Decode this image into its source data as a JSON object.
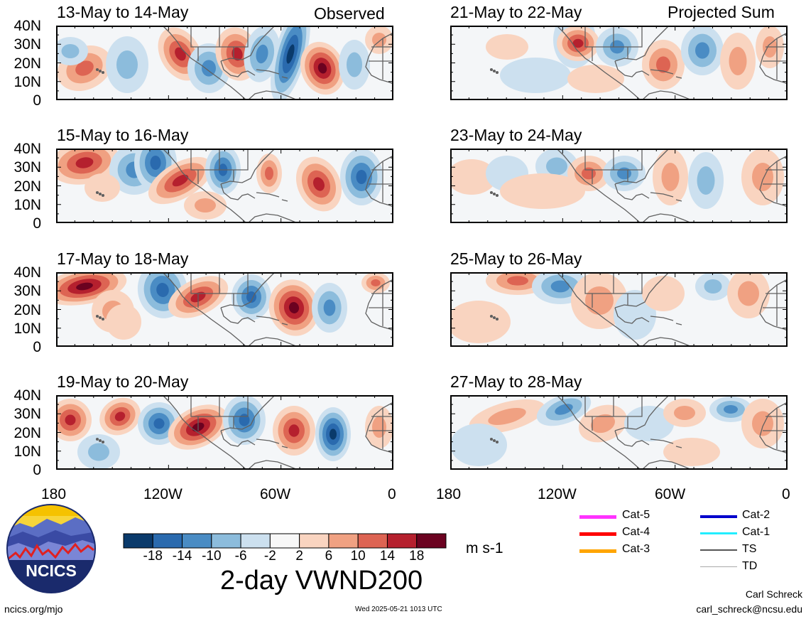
{
  "columns": {
    "left_label": "Observed",
    "right_label": "Projected Sum"
  },
  "panels_left": [
    {
      "title": "13-May to 14-May"
    },
    {
      "title": "15-May to 16-May"
    },
    {
      "title": "17-May to 18-May"
    },
    {
      "title": "19-May to 20-May"
    }
  ],
  "panels_right": [
    {
      "title": "21-May to 22-May"
    },
    {
      "title": "23-May to 24-May"
    },
    {
      "title": "25-May to 26-May"
    },
    {
      "title": "27-May to 28-May"
    }
  ],
  "y_ticks": [
    "40N",
    "30N",
    "20N",
    "10N",
    "0"
  ],
  "x_ticks": [
    "180",
    "120W",
    "60W",
    "0"
  ],
  "colorbar": {
    "ticks": [
      "-18",
      "-14",
      "-10",
      "-6",
      "-2",
      "2",
      "6",
      "10",
      "14",
      "18"
    ],
    "units": "m s-1",
    "colors": [
      "#0a3a6b",
      "#2a6aae",
      "#4a8cc4",
      "#8cbcdc",
      "#cce0ef",
      "#f7f7f7",
      "#f9d4c0",
      "#f0a182",
      "#dd6453",
      "#b5202e",
      "#6b0220"
    ]
  },
  "main_title": "2-day VWND200",
  "storm_legend": {
    "items": [
      {
        "label": "Cat-5",
        "color": "#ff33ff"
      },
      {
        "label": "Cat-4",
        "color": "#ff0000"
      },
      {
        "label": "Cat-3",
        "color": "#ffa500"
      },
      {
        "label": "Cat-2",
        "color": "#0000cc"
      },
      {
        "label": "Cat-1",
        "color": "#22eeff"
      },
      {
        "label": "TS",
        "color": "#555555"
      },
      {
        "label": "TD",
        "color": "#aaaaaa"
      }
    ]
  },
  "logo": {
    "text": "NCICS"
  },
  "footer": {
    "url": "ncics.org/mjo",
    "timestamp": "Wed 2025-05-21 1013 UTC",
    "author": "Carl Schreck",
    "email": "carl_schreck@ncsu.edu"
  }
}
